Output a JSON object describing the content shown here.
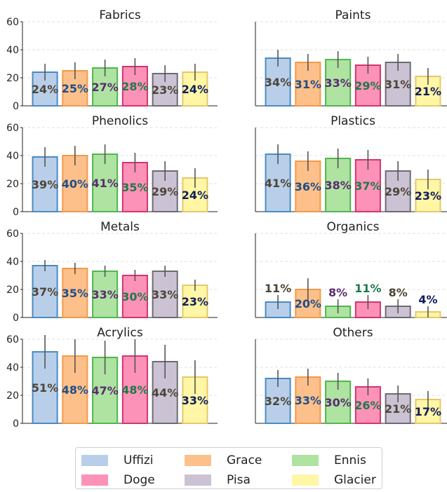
{
  "chart_data": {
    "type": "bar",
    "layout": "grid-4x2",
    "ylim": [
      0,
      60
    ],
    "yticks": [
      0,
      20,
      40,
      60
    ],
    "grid": "y-dashed",
    "legend_placement": "bottom-center",
    "series": [
      {
        "name": "Uffizi",
        "fill": "#b9cfe9",
        "edge": "#4a8bc2",
        "label_color": "#4d4536"
      },
      {
        "name": "Grace",
        "fill": "#fdc08a",
        "edge": "#f29a4a",
        "label_color": "#1f4e89"
      },
      {
        "name": "Ennis",
        "fill": "#aee3a1",
        "edge": "#52b64e",
        "label_color": "#5c2a72"
      },
      {
        "name": "Doge",
        "fill": "#fd92b8",
        "edge": "#d6336e",
        "label_color": "#1e7a4a"
      },
      {
        "name": "Pisa",
        "fill": "#cbc3d4",
        "edge": "#6e6a72",
        "label_color": "#4d4536"
      },
      {
        "name": "Glacier",
        "fill": "#fff6a6",
        "edge": "#e6c86a",
        "label_color": "#0f1d5c"
      }
    ],
    "panels": [
      {
        "title": "Fabrics",
        "values": [
          24,
          25,
          27,
          28,
          23,
          24
        ],
        "errors": [
          6,
          6,
          6,
          6,
          6,
          6
        ],
        "labels": [
          "24%",
          "25%",
          "27%",
          "28%",
          "23%",
          "24%"
        ]
      },
      {
        "title": "Paints",
        "values": [
          34,
          31,
          33,
          29,
          31,
          21
        ],
        "errors": [
          6,
          6,
          6,
          6,
          6,
          6
        ],
        "labels": [
          "34%",
          "31%",
          "33%",
          "29%",
          "31%",
          "21%"
        ]
      },
      {
        "title": "Phenolics",
        "values": [
          39,
          40,
          41,
          35,
          29,
          24
        ],
        "errors": [
          7,
          7,
          7,
          7,
          7,
          7
        ],
        "labels": [
          "39%",
          "40%",
          "41%",
          "35%",
          "29%",
          "24%"
        ]
      },
      {
        "title": "Plastics",
        "values": [
          41,
          36,
          38,
          37,
          29,
          23
        ],
        "errors": [
          7,
          7,
          7,
          7,
          7,
          7
        ],
        "labels": [
          "41%",
          "36%",
          "38%",
          "37%",
          "29%",
          "23%"
        ]
      },
      {
        "title": "Metals",
        "values": [
          37,
          35,
          33,
          30,
          33,
          23
        ],
        "errors": [
          4,
          4,
          4,
          4,
          4,
          4
        ],
        "labels": [
          "37%",
          "35%",
          "33%",
          "30%",
          "33%",
          "23%"
        ]
      },
      {
        "title": "Organics",
        "values": [
          11,
          20,
          8,
          11,
          8,
          4
        ],
        "errors": [
          5,
          8,
          5,
          5,
          5,
          4
        ],
        "labels": [
          "11%",
          "20%",
          "8%",
          "11%",
          "8%",
          "4%"
        ]
      },
      {
        "title": "Acrylics",
        "values": [
          51,
          48,
          47,
          48,
          44,
          33
        ],
        "errors": [
          12,
          12,
          12,
          12,
          12,
          12
        ],
        "labels": [
          "51%",
          "48%",
          "47%",
          "48%",
          "44%",
          "33%"
        ]
      },
      {
        "title": "Others",
        "values": [
          32,
          33,
          30,
          26,
          21,
          17
        ],
        "errors": [
          6,
          6,
          6,
          6,
          6,
          6
        ],
        "labels": [
          "32%",
          "33%",
          "30%",
          "26%",
          "21%",
          "17%"
        ]
      }
    ]
  }
}
